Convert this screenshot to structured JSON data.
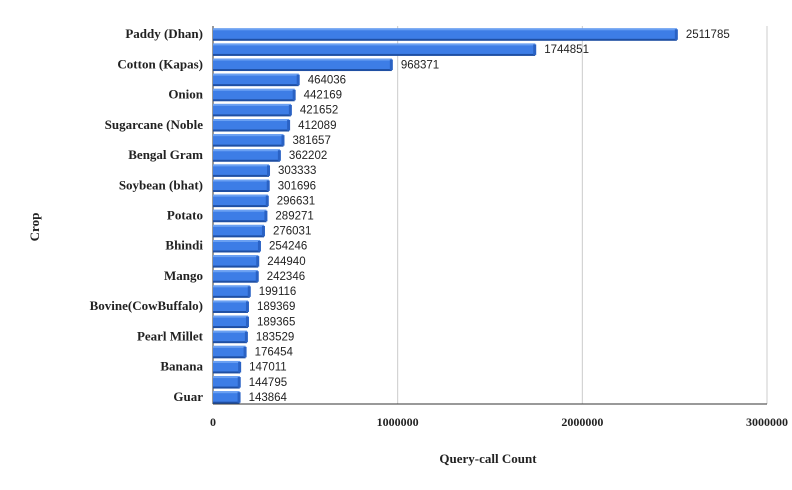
{
  "chart_data": {
    "type": "bar",
    "orientation": "horizontal",
    "title": "",
    "xlabel": "Query-call Count",
    "ylabel": "Crop",
    "xlim": [
      0,
      3000000
    ],
    "x_ticks": [
      "0",
      "1000000",
      "2000000",
      "3000000"
    ],
    "grid": "vertical",
    "legend": "none",
    "bar_color": "#3d7de6",
    "categories": [
      "Paddy (Dhan)",
      "",
      "Cotton (Kapas)",
      "",
      "Onion",
      "",
      "Sugarcane (Noble",
      "",
      "Bengal Gram",
      "",
      "Soybean (bhat)",
      "",
      "Potato",
      "",
      "Bhindi",
      "",
      "Mango",
      "",
      "Bovine(CowBuffalo)",
      "",
      "Pearl Millet",
      "",
      "Banana",
      "",
      "Guar"
    ],
    "values": [
      2511785,
      1744851,
      968371,
      464036,
      442169,
      421652,
      412089,
      381657,
      362202,
      303333,
      301696,
      296631,
      289271,
      276031,
      254246,
      244940,
      242346,
      199116,
      189369,
      189365,
      183529,
      176454,
      147011,
      144795,
      143864
    ],
    "value_labels": [
      "2511785",
      "1744851",
      "968371",
      "464036",
      "442169",
      "421652",
      "412089",
      "381657",
      "362202",
      "303333",
      "301696",
      "296631",
      "289271",
      "276031",
      "254246",
      "244940",
      "242346",
      "199116",
      "189369",
      "189365",
      "183529",
      "176454",
      "147011",
      "144795",
      "143864"
    ]
  }
}
